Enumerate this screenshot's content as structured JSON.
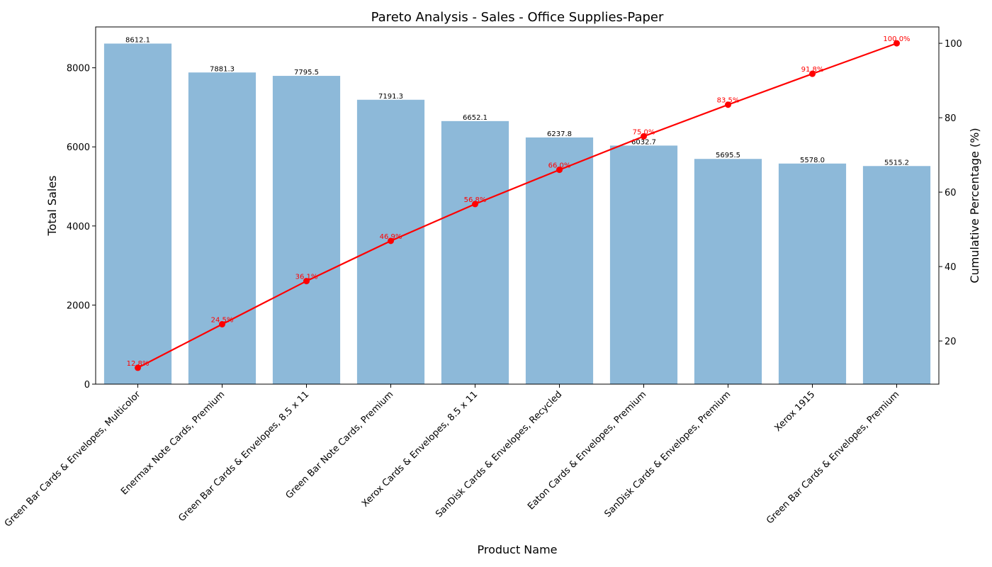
{
  "chart_data": {
    "type": "bar",
    "title": "Pareto Analysis - Sales - Office Supplies-Paper",
    "xlabel": "Product Name",
    "ylabel": "Total Sales",
    "y2label": "Cumulative Percentage (%)",
    "categories": [
      "Green Bar Cards & Envelopes, Multicolor",
      "Enermax Note Cards, Premium",
      "Green Bar Cards & Envelopes, 8.5 x 11",
      "Green Bar Note Cards, Premium",
      "Xerox Cards & Envelopes, 8.5 x 11",
      "SanDisk Cards & Envelopes, Recycled",
      "Eaton Cards & Envelopes, Premium",
      "SanDisk Cards & Envelopes, Premium",
      "Xerox 1915",
      "Green Bar Cards & Envelopes, Premium"
    ],
    "series": [
      {
        "type": "bar",
        "axis": "left",
        "values": [
          8612.1,
          7881.3,
          7795.5,
          7191.3,
          6652.1,
          6237.8,
          6032.7,
          5695.5,
          5578.0,
          5515.2
        ],
        "labels": [
          "8612.1",
          "7881.3",
          "7795.5",
          "7191.3",
          "6652.1",
          "6237.8",
          "6032.7",
          "5695.5",
          "5578.0",
          "5515.2"
        ],
        "color": "#8db9d9"
      },
      {
        "type": "line",
        "axis": "right",
        "values": [
          12.8,
          24.5,
          36.1,
          46.9,
          56.8,
          66.0,
          75.0,
          83.5,
          91.8,
          100.0
        ],
        "labels": [
          "12.8%",
          "24.5%",
          "36.1%",
          "46.9%",
          "56.8%",
          "66.0%",
          "75.0%",
          "83.5%",
          "91.8%",
          "100.0%"
        ],
        "color": "#ff0000"
      }
    ],
    "ylim": [
      0,
      9033
    ],
    "yticks": [
      "0",
      "2000",
      "4000",
      "6000",
      "8000"
    ],
    "y2lim": [
      8.4,
      104.4
    ],
    "y2ticks": [
      "20",
      "40",
      "60",
      "80",
      "100"
    ],
    "grid": false,
    "legend": "none"
  }
}
